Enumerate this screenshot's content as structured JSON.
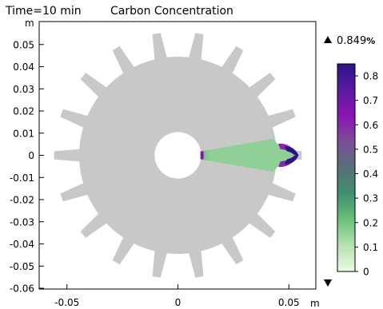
{
  "header": {
    "time_label": "Time=10 min",
    "plot_title": "Carbon Concentration"
  },
  "chart_data": {
    "type": "heatmap",
    "x_axis": {
      "unit": "m",
      "range": [
        -0.062,
        0.062
      ],
      "ticks": [
        -0.05,
        0,
        0.05
      ],
      "tick_labels": [
        "-0.05",
        "0",
        "0.05"
      ]
    },
    "y_axis": {
      "unit": "m",
      "range": [
        -0.06,
        0.06
      ],
      "ticks": [
        0.05,
        0.04,
        0.03,
        0.02,
        0.01,
        0,
        -0.01,
        -0.02,
        -0.03,
        -0.04,
        -0.05,
        -0.06
      ],
      "tick_labels": [
        "0.05",
        "0.04",
        "0.03",
        "0.02",
        "0.01",
        "0",
        "-0.01",
        "-0.02",
        "-0.03",
        "-0.04",
        "-0.05",
        "-0.06"
      ]
    },
    "gear": {
      "teeth": 18,
      "root_radius": 0.0445,
      "tip_radius": 0.0558,
      "bore_radius": 0.0105,
      "color": "#c8c8c8"
    },
    "sector": {
      "half_angle_deg": 10,
      "inner_radius": 0.0105,
      "outer_radius": 0.054,
      "base_value": 0.16,
      "tip_value": 0.85
    },
    "colorbar": {
      "max_label": "0.849",
      "unit_symbol": "%",
      "min": 0,
      "max": 0.849,
      "ticks": [
        0.8,
        0.7,
        0.6,
        0.5,
        0.4,
        0.3,
        0.2,
        0.1,
        0
      ],
      "tick_labels": [
        "0.8",
        "0.7",
        "0.6",
        "0.5",
        "0.4",
        "0.3",
        "0.2",
        "0.1",
        "0"
      ],
      "colors": [
        "#ebfbe6",
        "#b5e2b0",
        "#6cbf7c",
        "#3f8f6e",
        "#57707a",
        "#7a4f96",
        "#8a14b4",
        "#5a1aa0",
        "#2a1388"
      ]
    }
  }
}
